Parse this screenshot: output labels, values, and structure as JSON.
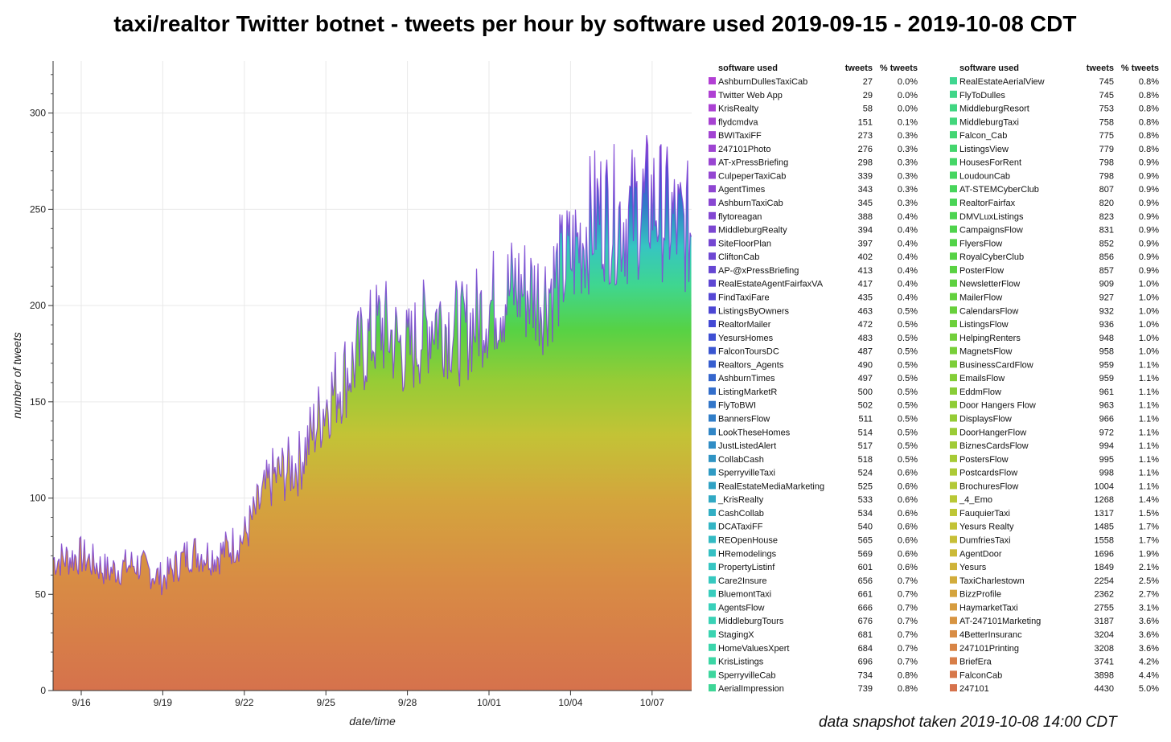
{
  "title": "taxi/realtor Twitter botnet - tweets per hour by software used 2019-09-15 - 2019-10-08 CDT",
  "snapshot_note": "data snapshot taken 2019-10-08 14:00 CDT",
  "chart_data": {
    "type": "area",
    "stacked": true,
    "title": "taxi/realtor Twitter botnet - tweets per hour by software used 2019-09-15 - 2019-10-08 CDT",
    "xlabel": "date/time",
    "ylabel": "number of tweets",
    "ylim": [
      0,
      327
    ],
    "yticks": [
      0,
      50,
      100,
      150,
      200,
      250,
      300
    ],
    "xticks": [
      "9/16",
      "9/19",
      "9/22",
      "9/25",
      "9/28",
      "10/01",
      "10/04",
      "10/07"
    ],
    "grid": true,
    "legend_placement": "right",
    "total_x": [
      "9/15",
      "9/16",
      "9/17",
      "9/18",
      "9/19",
      "9/20",
      "9/21",
      "9/22",
      "9/23",
      "9/24",
      "9/25",
      "9/26",
      "9/27",
      "9/28",
      "9/29",
      "9/30",
      "10/01",
      "10/02",
      "10/03",
      "10/04",
      "10/05",
      "10/06",
      "10/07",
      "10/08"
    ],
    "total_y": [
      68,
      70,
      62,
      66,
      58,
      72,
      70,
      80,
      110,
      118,
      150,
      170,
      190,
      175,
      195,
      185,
      200,
      210,
      205,
      225,
      250,
      245,
      255,
      240
    ],
    "legend_headers": {
      "software": "software used",
      "tweets": "tweets",
      "pct": "% tweets"
    },
    "series": [
      {
        "name": "AshburnDullesTaxiCab",
        "tweets": "27",
        "pct": "0.0%",
        "color": "#b23fd4"
      },
      {
        "name": "Twitter Web App",
        "tweets": "29",
        "pct": "0.0%",
        "color": "#af40d3"
      },
      {
        "name": "KrisRealty",
        "tweets": "58",
        "pct": "0.0%",
        "color": "#ab41d3"
      },
      {
        "name": "flydcmdva",
        "tweets": "151",
        "pct": "0.1%",
        "color": "#a742d2"
      },
      {
        "name": "BWITaxiFF",
        "tweets": "273",
        "pct": "0.3%",
        "color": "#a243d2"
      },
      {
        "name": "247101Photo",
        "tweets": "276",
        "pct": "0.3%",
        "color": "#9e44d2"
      },
      {
        "name": "AT-xPressBriefing",
        "tweets": "298",
        "pct": "0.3%",
        "color": "#9945d2"
      },
      {
        "name": "CulpeperTaxiCab",
        "tweets": "339",
        "pct": "0.3%",
        "color": "#9446d2"
      },
      {
        "name": "AgentTimes",
        "tweets": "343",
        "pct": "0.3%",
        "color": "#8f46d2"
      },
      {
        "name": "AshburnTaxiCab",
        "tweets": "345",
        "pct": "0.3%",
        "color": "#8947d2"
      },
      {
        "name": "flytoreagan",
        "tweets": "388",
        "pct": "0.4%",
        "color": "#8347d2"
      },
      {
        "name": "MiddleburgRealty",
        "tweets": "394",
        "pct": "0.4%",
        "color": "#7c47d2"
      },
      {
        "name": "SiteFloorPlan",
        "tweets": "397",
        "pct": "0.4%",
        "color": "#7547d2"
      },
      {
        "name": "CliftonCab",
        "tweets": "402",
        "pct": "0.4%",
        "color": "#6e47d3"
      },
      {
        "name": "AP-@xPressBriefing",
        "tweets": "413",
        "pct": "0.4%",
        "color": "#6647d3"
      },
      {
        "name": "RealEstateAgentFairfaxVA",
        "tweets": "417",
        "pct": "0.4%",
        "color": "#5e47d3"
      },
      {
        "name": "FindTaxiFare",
        "tweets": "435",
        "pct": "0.4%",
        "color": "#5547d4"
      },
      {
        "name": "ListingsByOwners",
        "tweets": "463",
        "pct": "0.5%",
        "color": "#4c47d4"
      },
      {
        "name": "RealtorMailer",
        "tweets": "472",
        "pct": "0.5%",
        "color": "#4349d4"
      },
      {
        "name": "YesursHomes",
        "tweets": "483",
        "pct": "0.5%",
        "color": "#3e4fd3"
      },
      {
        "name": "FalconToursDC",
        "tweets": "487",
        "pct": "0.5%",
        "color": "#3a56d1"
      },
      {
        "name": "Realtors_Agents",
        "tweets": "490",
        "pct": "0.5%",
        "color": "#375ecf"
      },
      {
        "name": "AshburnTimes",
        "tweets": "497",
        "pct": "0.5%",
        "color": "#3566cd"
      },
      {
        "name": "ListingMarketR",
        "tweets": "500",
        "pct": "0.5%",
        "color": "#336ecb"
      },
      {
        "name": "FlyToBWI",
        "tweets": "502",
        "pct": "0.5%",
        "color": "#3276c9"
      },
      {
        "name": "BannersFlow",
        "tweets": "511",
        "pct": "0.5%",
        "color": "#317ec8"
      },
      {
        "name": "LookTheseHomes",
        "tweets": "514",
        "pct": "0.5%",
        "color": "#3186c6"
      },
      {
        "name": "JustListedAlert",
        "tweets": "517",
        "pct": "0.5%",
        "color": "#308dc5"
      },
      {
        "name": "CollabCash",
        "tweets": "518",
        "pct": "0.5%",
        "color": "#3094c4"
      },
      {
        "name": "SperryvilleTaxi",
        "tweets": "524",
        "pct": "0.6%",
        "color": "#309bc4"
      },
      {
        "name": "RealEstateMediaMarketing",
        "tweets": "525",
        "pct": "0.6%",
        "color": "#30a2c4"
      },
      {
        "name": "_KrisRealty",
        "tweets": "533",
        "pct": "0.6%",
        "color": "#31a9c4"
      },
      {
        "name": "CashCollab",
        "tweets": "534",
        "pct": "0.6%",
        "color": "#32afc4"
      },
      {
        "name": "DCATaxiFF",
        "tweets": "540",
        "pct": "0.6%",
        "color": "#33b5c4"
      },
      {
        "name": "REOpenHouse",
        "tweets": "565",
        "pct": "0.6%",
        "color": "#34bbc4"
      },
      {
        "name": "HRemodelings",
        "tweets": "569",
        "pct": "0.6%",
        "color": "#35c0c3"
      },
      {
        "name": "PropertyListinf",
        "tweets": "601",
        "pct": "0.6%",
        "color": "#36c5c2"
      },
      {
        "name": "Care2Insure",
        "tweets": "656",
        "pct": "0.7%",
        "color": "#37c9c0"
      },
      {
        "name": "BluemontTaxi",
        "tweets": "661",
        "pct": "0.7%",
        "color": "#38cdbd"
      },
      {
        "name": "AgentsFlow",
        "tweets": "666",
        "pct": "0.7%",
        "color": "#39d0ba"
      },
      {
        "name": "MiddleburgTours",
        "tweets": "676",
        "pct": "0.7%",
        "color": "#3ad2b6"
      },
      {
        "name": "StagingX",
        "tweets": "681",
        "pct": "0.7%",
        "color": "#3bd4b1"
      },
      {
        "name": "HomeValuesXpert",
        "tweets": "684",
        "pct": "0.7%",
        "color": "#3bd5ab"
      },
      {
        "name": "KrisListings",
        "tweets": "696",
        "pct": "0.7%",
        "color": "#3cd6a5"
      },
      {
        "name": "SperryvilleCab",
        "tweets": "734",
        "pct": "0.8%",
        "color": "#3dd69e"
      },
      {
        "name": "AerialImpression",
        "tweets": "739",
        "pct": "0.8%",
        "color": "#3ed697"
      },
      {
        "name": "RealEstateAerialView",
        "tweets": "745",
        "pct": "0.8%",
        "color": "#3fd690"
      },
      {
        "name": "FlyToDulles",
        "tweets": "745",
        "pct": "0.8%",
        "color": "#40d689"
      },
      {
        "name": "MiddleburgResort",
        "tweets": "753",
        "pct": "0.8%",
        "color": "#41d682"
      },
      {
        "name": "MiddleburgTaxi",
        "tweets": "758",
        "pct": "0.8%",
        "color": "#42d67b"
      },
      {
        "name": "Falcon_Cab",
        "tweets": "775",
        "pct": "0.8%",
        "color": "#43d674"
      },
      {
        "name": "ListingsView",
        "tweets": "779",
        "pct": "0.8%",
        "color": "#44d66d"
      },
      {
        "name": "HousesForRent",
        "tweets": "798",
        "pct": "0.9%",
        "color": "#45d667"
      },
      {
        "name": "LoudounCab",
        "tweets": "798",
        "pct": "0.9%",
        "color": "#46d661"
      },
      {
        "name": "AT-STEMCyberClub",
        "tweets": "807",
        "pct": "0.9%",
        "color": "#48d55b"
      },
      {
        "name": "RealtorFairfax",
        "tweets": "820",
        "pct": "0.9%",
        "color": "#4ad456"
      },
      {
        "name": "DMVLuxListings",
        "tweets": "823",
        "pct": "0.9%",
        "color": "#4cd451"
      },
      {
        "name": "CampaignsFlow",
        "tweets": "831",
        "pct": "0.9%",
        "color": "#4fd34c"
      },
      {
        "name": "FlyersFlow",
        "tweets": "852",
        "pct": "0.9%",
        "color": "#52d348"
      },
      {
        "name": "RoyalCyberClub",
        "tweets": "856",
        "pct": "0.9%",
        "color": "#56d245"
      },
      {
        "name": "PosterFlow",
        "tweets": "857",
        "pct": "0.9%",
        "color": "#5ad242"
      },
      {
        "name": "NewsletterFlow",
        "tweets": "909",
        "pct": "1.0%",
        "color": "#5ed140"
      },
      {
        "name": "MailerFlow",
        "tweets": "927",
        "pct": "1.0%",
        "color": "#63d13e"
      },
      {
        "name": "CalendarsFlow",
        "tweets": "932",
        "pct": "1.0%",
        "color": "#68d03c"
      },
      {
        "name": "ListingsFlow",
        "tweets": "936",
        "pct": "1.0%",
        "color": "#6dd03b"
      },
      {
        "name": "HelpingRenters",
        "tweets": "948",
        "pct": "1.0%",
        "color": "#72cf3a"
      },
      {
        "name": "MagnetsFlow",
        "tweets": "958",
        "pct": "1.0%",
        "color": "#78cf39"
      },
      {
        "name": "BusinessCardFlow",
        "tweets": "959",
        "pct": "1.1%",
        "color": "#7dce38"
      },
      {
        "name": "EmailsFlow",
        "tweets": "959",
        "pct": "1.1%",
        "color": "#83ce37"
      },
      {
        "name": "EddmFlow",
        "tweets": "961",
        "pct": "1.1%",
        "color": "#89cd37"
      },
      {
        "name": "Door Hangers Flow",
        "tweets": "963",
        "pct": "1.1%",
        "color": "#8fcd36"
      },
      {
        "name": "DisplaysFlow",
        "tweets": "966",
        "pct": "1.1%",
        "color": "#95cc36"
      },
      {
        "name": "DoorHangerFlow",
        "tweets": "972",
        "pct": "1.1%",
        "color": "#9bcc36"
      },
      {
        "name": "BiznesCardsFlow",
        "tweets": "994",
        "pct": "1.1%",
        "color": "#a1cb36"
      },
      {
        "name": "PostersFlow",
        "tweets": "995",
        "pct": "1.1%",
        "color": "#a7cb36"
      },
      {
        "name": "PostcardsFlow",
        "tweets": "998",
        "pct": "1.1%",
        "color": "#adca36"
      },
      {
        "name": "BrochuresFlow",
        "tweets": "1004",
        "pct": "1.1%",
        "color": "#b3c936"
      },
      {
        "name": "_4_Emo",
        "tweets": "1268",
        "pct": "1.4%",
        "color": "#b9c836"
      },
      {
        "name": "FauquierTaxi",
        "tweets": "1317",
        "pct": "1.5%",
        "color": "#bec636"
      },
      {
        "name": "Yesurs Realty",
        "tweets": "1485",
        "pct": "1.7%",
        "color": "#c3c336"
      },
      {
        "name": "DumfriesTaxi",
        "tweets": "1558",
        "pct": "1.7%",
        "color": "#c7bf37"
      },
      {
        "name": "AgentDoor",
        "tweets": "1696",
        "pct": "1.9%",
        "color": "#cbba38"
      },
      {
        "name": "Yesurs",
        "tweets": "1849",
        "pct": "2.1%",
        "color": "#cfb339"
      },
      {
        "name": "TaxiCharlestown",
        "tweets": "2254",
        "pct": "2.5%",
        "color": "#d2ac3b"
      },
      {
        "name": "BizzProfile",
        "tweets": "2362",
        "pct": "2.7%",
        "color": "#d4a43d"
      },
      {
        "name": "HaymarketTaxi",
        "tweets": "2755",
        "pct": "3.1%",
        "color": "#d69c3f"
      },
      {
        "name": "AT-247101Marketing",
        "tweets": "3187",
        "pct": "3.6%",
        "color": "#d79442"
      },
      {
        "name": "4BetterInsuranc",
        "tweets": "3204",
        "pct": "3.6%",
        "color": "#d88c44"
      },
      {
        "name": "247101Printing",
        "tweets": "3208",
        "pct": "3.6%",
        "color": "#d88546"
      },
      {
        "name": "BriefEra",
        "tweets": "3741",
        "pct": "4.2%",
        "color": "#d87e48"
      },
      {
        "name": "FalconCab",
        "tweets": "3898",
        "pct": "4.4%",
        "color": "#d7784a"
      },
      {
        "name": "247101",
        "tweets": "4430",
        "pct": "5.0%",
        "color": "#d6724c"
      }
    ]
  }
}
